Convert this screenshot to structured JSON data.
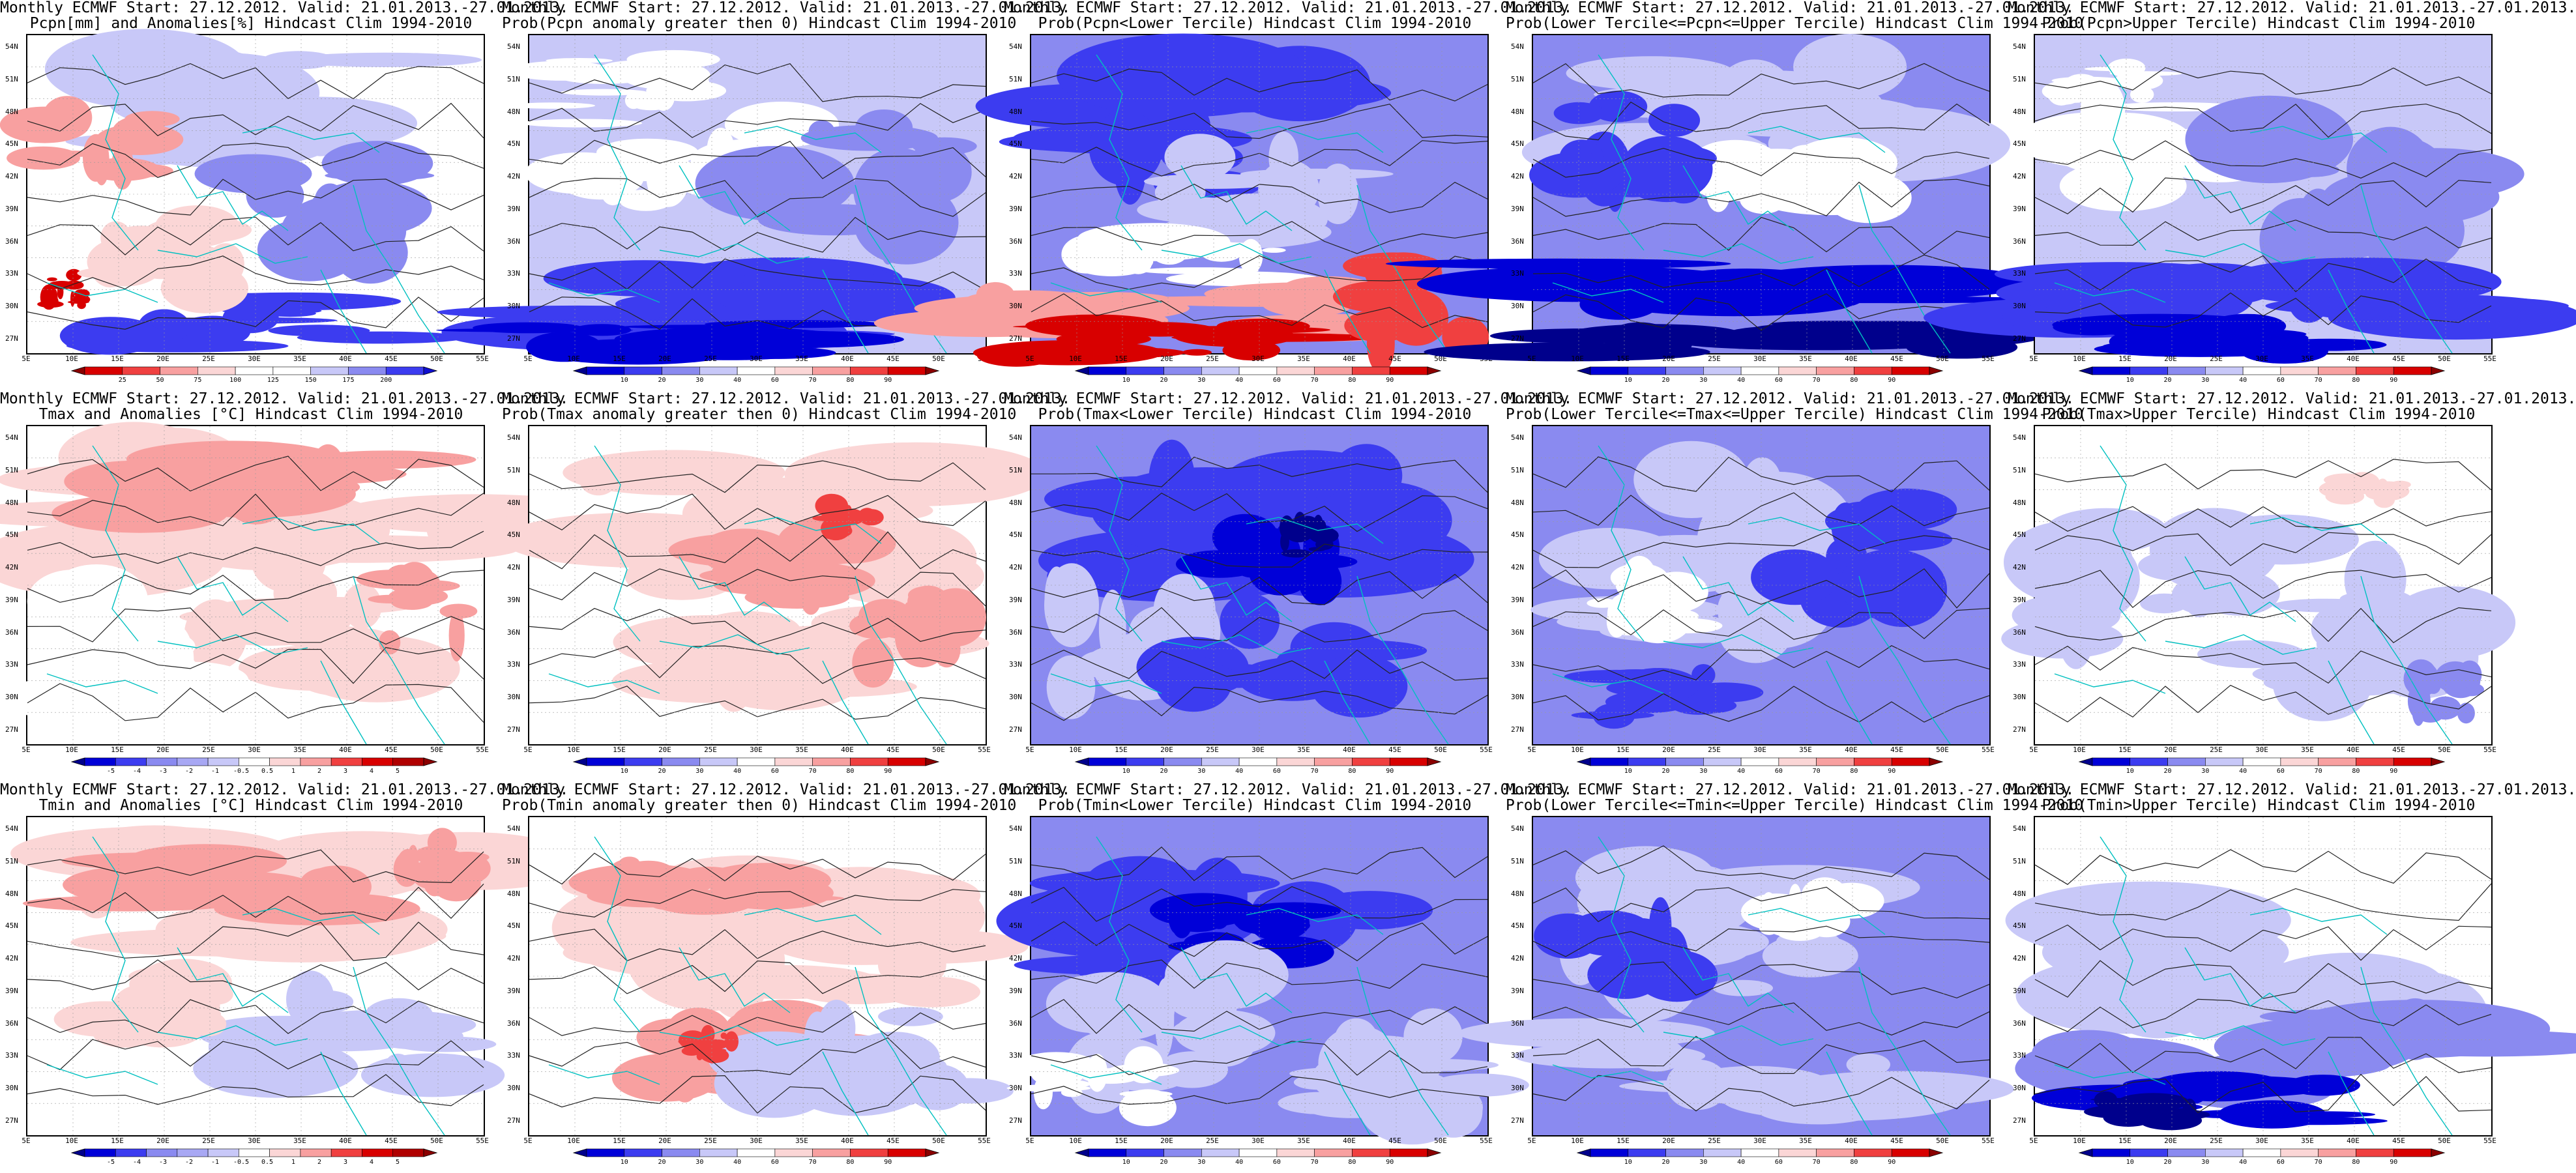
{
  "colorbars": {
    "anom_pcpn": {
      "ticks": [
        "25",
        "50",
        "75",
        "100",
        "125",
        "150",
        "175",
        "200"
      ],
      "colors": [
        "#8b0000",
        "#d80000",
        "#f04040",
        "#f8a0a0",
        "#fbd6d6",
        "#ffffff",
        "#ffffff",
        "#c8c8f8",
        "#8a8af0",
        "#3c3cf0",
        "#1010d0"
      ]
    },
    "prob": {
      "ticks": [
        "10",
        "20",
        "30",
        "40",
        "60",
        "70",
        "80",
        "90"
      ],
      "colors": [
        "#00008c",
        "#0000d8",
        "#3c3cf0",
        "#8a8af0",
        "#c8c8f8",
        "#ffffff",
        "#fbd6d6",
        "#f8a0a0",
        "#f04040",
        "#d80000",
        "#8b0000"
      ]
    },
    "anom_temp": {
      "ticks": [
        "-5",
        "-4",
        "-3",
        "-2",
        "-1",
        "-0.5",
        "0.5",
        "1",
        "2",
        "3",
        "4",
        "5"
      ],
      "colors": [
        "#00008c",
        "#0000d8",
        "#3c3cf0",
        "#8a8af0",
        "#a8a8f4",
        "#c8c8f8",
        "#ffffff",
        "#fbd6d6",
        "#f8a0a0",
        "#f04040",
        "#d80000",
        "#b00000",
        "#8b0000"
      ]
    }
  },
  "lat_labels": [
    "54N",
    "51N",
    "48N",
    "45N",
    "42N",
    "39N",
    "36N",
    "33N",
    "30N",
    "27N"
  ],
  "lon_labels": [
    "5E",
    "10E",
    "15E",
    "20E",
    "25E",
    "30E",
    "35E",
    "40E",
    "45E",
    "50E",
    "55E"
  ],
  "panels": [
    {
      "line1": "Monthly ECMWF Start: 27.12.2012. Valid: 21.01.2013.-27.01.2013.",
      "line2": "Pcpn[mm] and Anomalies[%] Hindcast Clim 1994-2010",
      "bar": "anom_pcpn",
      "bg": "#ffffff",
      "blobs": [
        [
          "#c8c8f8",
          0.5,
          0.25,
          0.6,
          0.35
        ],
        [
          "#8a8af0",
          0.6,
          0.55,
          0.4,
          0.3
        ],
        [
          "#3c3cf0",
          0.45,
          0.92,
          0.7,
          0.18
        ],
        [
          "#f8a0a0",
          0.15,
          0.35,
          0.25,
          0.2
        ],
        [
          "#d80000",
          0.08,
          0.8,
          0.08,
          0.1
        ],
        [
          "#fbd6d6",
          0.3,
          0.7,
          0.3,
          0.2
        ]
      ]
    },
    {
      "line1": "Monthly ECMWF Start: 27.12.2012. Valid: 21.01.2013.-27.01.2013.",
      "line2": "Prob(Pcpn anomaly greater then 0) Hindcast Clim 1994-2010",
      "bar": "prob",
      "bg": "#c8c8f8",
      "blobs": [
        [
          "#ffffff",
          0.35,
          0.4,
          0.5,
          0.25
        ],
        [
          "#8a8af0",
          0.7,
          0.45,
          0.45,
          0.35
        ],
        [
          "#3c3cf0",
          0.5,
          0.85,
          0.9,
          0.2
        ],
        [
          "#0000d8",
          0.3,
          0.95,
          0.7,
          0.12
        ],
        [
          "#ffffff",
          0.2,
          0.15,
          0.3,
          0.15
        ]
      ]
    },
    {
      "line1": "Monthly ECMWF Start: 27.12.2012. Valid: 21.01.2013.-27.01.2013.",
      "line2": "Prob(Pcpn<Lower Tercile) Hindcast Clim 1994-2010",
      "bar": "prob",
      "bg": "#8a8af0",
      "blobs": [
        [
          "#3c3cf0",
          0.4,
          0.3,
          0.7,
          0.35
        ],
        [
          "#c8c8f8",
          0.55,
          0.5,
          0.5,
          0.25
        ],
        [
          "#ffffff",
          0.3,
          0.7,
          0.5,
          0.15
        ],
        [
          "#f8a0a0",
          0.3,
          0.85,
          0.8,
          0.14
        ],
        [
          "#d80000",
          0.25,
          0.96,
          0.6,
          0.1
        ],
        [
          "#f04040",
          0.85,
          0.85,
          0.3,
          0.25
        ]
      ]
    },
    {
      "line1": "Monthly ECMWF Start: 27.12.2012. Valid: 21.01.2013.-27.01.2013.",
      "line2": "Prob(Lower Tercile<=Pcpn<=Upper Tercile) Hindcast Clim 1994-2010",
      "bar": "prob",
      "bg": "#8a8af0",
      "blobs": [
        [
          "#c8c8f8",
          0.5,
          0.25,
          0.7,
          0.3
        ],
        [
          "#ffffff",
          0.55,
          0.45,
          0.4,
          0.2
        ],
        [
          "#3c3cf0",
          0.2,
          0.35,
          0.3,
          0.3
        ],
        [
          "#0000d8",
          0.5,
          0.78,
          0.95,
          0.15
        ],
        [
          "#00008c",
          0.5,
          0.95,
          0.95,
          0.1
        ]
      ]
    },
    {
      "line1": "Monthly ECMWF Start: 27.12.2012. Valid: 21.01.2013.-27.01.2013.",
      "line2": "Prob(Pcpn>Upper Tercile) Hindcast Clim 1994-2010",
      "bar": "prob",
      "bg": "#c8c8f8",
      "blobs": [
        [
          "#ffffff",
          0.35,
          0.35,
          0.45,
          0.25
        ],
        [
          "#8a8af0",
          0.65,
          0.5,
          0.5,
          0.35
        ],
        [
          "#3c3cf0",
          0.5,
          0.85,
          0.9,
          0.2
        ],
        [
          "#0000d8",
          0.35,
          0.95,
          0.6,
          0.1
        ],
        [
          "#ffffff",
          0.15,
          0.15,
          0.2,
          0.1
        ]
      ]
    },
    {
      "line1": "Monthly ECMWF Start: 27.12.2012. Valid: 21.01.2013.-27.01.2013.",
      "line2": "Tmax and Anomalies [°C] Hindcast Clim 1994-2010",
      "bar": "anom_temp",
      "bg": "#ffffff",
      "blobs": [
        [
          "#fbd6d6",
          0.55,
          0.25,
          0.9,
          0.35
        ],
        [
          "#f8a0a0",
          0.5,
          0.2,
          0.6,
          0.2
        ],
        [
          "#fbd6d6",
          0.6,
          0.65,
          0.5,
          0.3
        ],
        [
          "#f8a0a0",
          0.85,
          0.6,
          0.2,
          0.25
        ],
        [
          "#ffffff",
          0.2,
          0.7,
          0.35,
          0.35
        ]
      ]
    },
    {
      "line1": "Monthly ECMWF Start: 27.12.2012. Valid: 21.01.2013.-27.01.2013.",
      "line2": "Prob(Tmax anomaly greater then 0) Hindcast Clim 1994-2010",
      "bar": "prob",
      "bg": "#ffffff",
      "blobs": [
        [
          "#fbd6d6",
          0.5,
          0.3,
          0.8,
          0.35
        ],
        [
          "#f8a0a0",
          0.55,
          0.45,
          0.4,
          0.2
        ],
        [
          "#fbd6d6",
          0.55,
          0.7,
          0.6,
          0.25
        ],
        [
          "#f8a0a0",
          0.85,
          0.65,
          0.2,
          0.25
        ],
        [
          "#f04040",
          0.7,
          0.3,
          0.1,
          0.1
        ]
      ]
    },
    {
      "line1": "Monthly ECMWF Start: 27.12.2012. Valid: 21.01.2013.-27.01.2013.",
      "line2": "Prob(Tmax<Lower Tercile) Hindcast Clim 1994-2010",
      "bar": "prob",
      "bg": "#8a8af0",
      "blobs": [
        [
          "#3c3cf0",
          0.5,
          0.3,
          0.8,
          0.35
        ],
        [
          "#0000d8",
          0.55,
          0.4,
          0.3,
          0.2
        ],
        [
          "#00008c",
          0.6,
          0.35,
          0.1,
          0.1
        ],
        [
          "#c8c8f8",
          0.2,
          0.65,
          0.3,
          0.35
        ],
        [
          "#3c3cf0",
          0.55,
          0.7,
          0.4,
          0.25
        ]
      ]
    },
    {
      "line1": "Monthly ECMWF Start: 27.12.2012. Valid: 21.01.2013.-27.01.2013.",
      "line2": "Prob(Lower Tercile<=Tmax<=Upper Tercile) Hindcast Clim 1994-2010",
      "bar": "prob",
      "bg": "#8a8af0",
      "blobs": [
        [
          "#c8c8f8",
          0.4,
          0.4,
          0.6,
          0.5
        ],
        [
          "#3c3cf0",
          0.7,
          0.4,
          0.3,
          0.3
        ],
        [
          "#ffffff",
          0.25,
          0.55,
          0.2,
          0.2
        ],
        [
          "#3c3cf0",
          0.3,
          0.85,
          0.3,
          0.15
        ]
      ]
    },
    {
      "line1": "Monthly ECMWF Start: 27.12.2012. Valid: 21.01.2013.-27.01.2013.",
      "line2": "Prob(Tmax>Upper Tercile) Hindcast Clim 1994-2010",
      "bar": "prob",
      "bg": "#ffffff",
      "blobs": [
        [
          "#c8c8f8",
          0.3,
          0.5,
          0.5,
          0.35
        ],
        [
          "#c8c8f8",
          0.7,
          0.65,
          0.5,
          0.35
        ],
        [
          "#8a8af0",
          0.9,
          0.85,
          0.12,
          0.15
        ],
        [
          "#fbd6d6",
          0.75,
          0.2,
          0.15,
          0.08
        ]
      ]
    },
    {
      "line1": "Monthly ECMWF Start: 27.12.2012. Valid: 21.01.2013.-27.01.2013.",
      "line2": "Tmin and Anomalies [°C] Hindcast Clim 1994-2010",
      "bar": "anom_temp",
      "bg": "#ffffff",
      "blobs": [
        [
          "#fbd6d6",
          0.55,
          0.25,
          0.9,
          0.3
        ],
        [
          "#f8a0a0",
          0.5,
          0.2,
          0.6,
          0.18
        ],
        [
          "#f8a0a0",
          0.9,
          0.15,
          0.15,
          0.15
        ],
        [
          "#c8c8f8",
          0.7,
          0.7,
          0.5,
          0.3
        ],
        [
          "#fbd6d6",
          0.3,
          0.6,
          0.3,
          0.2
        ]
      ]
    },
    {
      "line1": "Monthly ECMWF Start: 27.12.2012. Valid: 21.01.2013.-27.01.2013.",
      "line2": "Prob(Tmin anomaly greater then 0) Hindcast Clim 1994-2010",
      "bar": "prob",
      "bg": "#ffffff",
      "blobs": [
        [
          "#fbd6d6",
          0.5,
          0.35,
          0.85,
          0.4
        ],
        [
          "#f8a0a0",
          0.4,
          0.2,
          0.4,
          0.15
        ],
        [
          "#f8a0a0",
          0.45,
          0.7,
          0.35,
          0.25
        ],
        [
          "#c8c8f8",
          0.75,
          0.75,
          0.45,
          0.3
        ],
        [
          "#f04040",
          0.4,
          0.72,
          0.1,
          0.08
        ]
      ]
    },
    {
      "line1": "Monthly ECMWF Start: 27.12.2012. Valid: 21.01.2013.-27.01.2013.",
      "line2": "Prob(Tmin<Lower Tercile) Hindcast Clim 1994-2010",
      "bar": "prob",
      "bg": "#8a8af0",
      "blobs": [
        [
          "#3c3cf0",
          0.5,
          0.3,
          0.8,
          0.35
        ],
        [
          "#0000d8",
          0.45,
          0.35,
          0.3,
          0.15
        ],
        [
          "#c8c8f8",
          0.3,
          0.65,
          0.35,
          0.35
        ],
        [
          "#ffffff",
          0.15,
          0.85,
          0.25,
          0.15
        ],
        [
          "#c8c8f8",
          0.8,
          0.8,
          0.4,
          0.3
        ]
      ]
    },
    {
      "line1": "Monthly ECMWF Start: 27.12.2012. Valid: 21.01.2013.-27.01.2013.",
      "line2": "Prob(Lower Tercile<=Tmin<=Upper Tercile) Hindcast Clim 1994-2010",
      "bar": "prob",
      "bg": "#8a8af0",
      "blobs": [
        [
          "#c8c8f8",
          0.45,
          0.35,
          0.7,
          0.4
        ],
        [
          "#3c3cf0",
          0.2,
          0.4,
          0.25,
          0.25
        ],
        [
          "#ffffff",
          0.6,
          0.3,
          0.2,
          0.15
        ],
        [
          "#c8c8f8",
          0.5,
          0.8,
          0.8,
          0.25
        ]
      ]
    },
    {
      "line1": "Monthly ECMWF Start: 27.12.2012. Valid: 21.01.2013.-27.01.2013.",
      "line2": "Prob(Tmin>Upper Tercile) Hindcast Clim 1994-2010",
      "bar": "prob",
      "bg": "#ffffff",
      "blobs": [
        [
          "#c8c8f8",
          0.5,
          0.45,
          0.8,
          0.35
        ],
        [
          "#8a8af0",
          0.55,
          0.75,
          0.9,
          0.25
        ],
        [
          "#0000d8",
          0.4,
          0.9,
          0.5,
          0.12
        ],
        [
          "#00008c",
          0.25,
          0.92,
          0.25,
          0.08
        ]
      ]
    }
  ]
}
